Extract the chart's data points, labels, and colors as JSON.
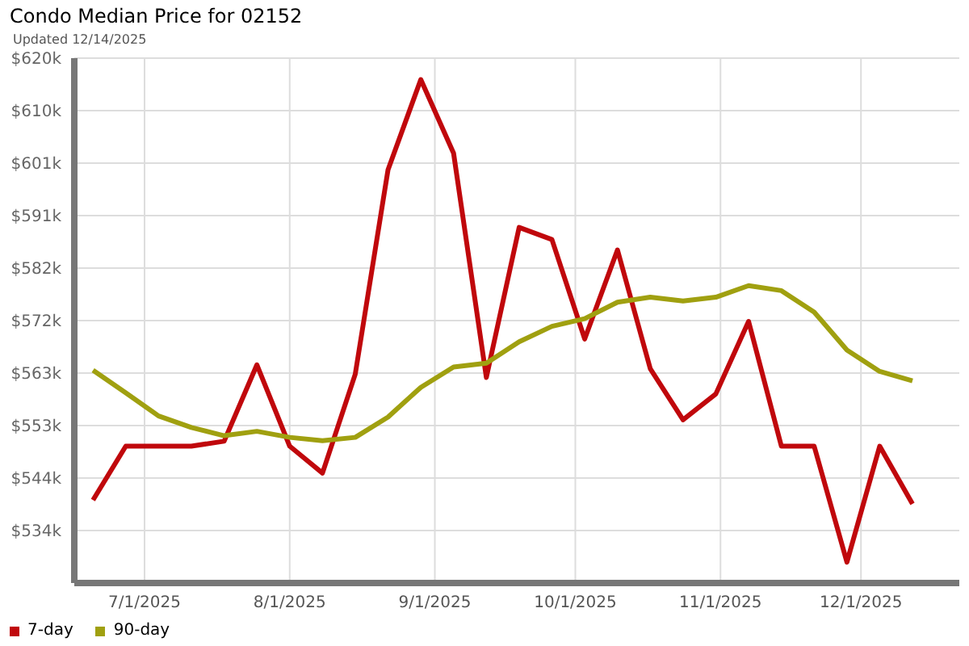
{
  "chart_data": {
    "type": "line",
    "title": "Condo Median Price for 02152",
    "subtitle": "Updated 12/14/2025",
    "x": [
      "2025-06-20",
      "2025-06-27",
      "2025-07-04",
      "2025-07-11",
      "2025-07-18",
      "2025-07-25",
      "2025-08-01",
      "2025-08-08",
      "2025-08-15",
      "2025-08-22",
      "2025-08-29",
      "2025-09-05",
      "2025-09-12",
      "2025-09-19",
      "2025-09-26",
      "2025-10-03",
      "2025-10-10",
      "2025-10-17",
      "2025-10-24",
      "2025-10-31",
      "2025-11-07",
      "2025-11-14",
      "2025-11-21",
      "2025-11-28",
      "2025-12-05",
      "2025-12-12"
    ],
    "series": [
      {
        "name": "7-day",
        "color": "#c0080c",
        "values": [
          539600,
          549400,
          549400,
          549400,
          550300,
          564200,
          549400,
          544500,
          562500,
          599700,
          616100,
          602700,
          561900,
          589200,
          587000,
          568900,
          585100,
          563500,
          554200,
          558900,
          572100,
          549400,
          549400,
          528300,
          549400,
          538900
        ]
      },
      {
        "name": "90-day",
        "color": "#a0a010",
        "values": [
          563200,
          559100,
          554900,
          552800,
          551300,
          552100,
          551000,
          550400,
          551000,
          554700,
          560100,
          563800,
          564500,
          568400,
          571200,
          572600,
          575600,
          576500,
          575800,
          576500,
          578600,
          577700,
          573800,
          566900,
          563000,
          561300
        ]
      }
    ],
    "xlim": [
      "2025-06-16",
      "2025-12-22"
    ],
    "xticks": [
      {
        "value": "2025-07-01",
        "label": "7/1/2025"
      },
      {
        "value": "2025-08-01",
        "label": "8/1/2025"
      },
      {
        "value": "2025-09-01",
        "label": "9/1/2025"
      },
      {
        "value": "2025-10-01",
        "label": "10/1/2025"
      },
      {
        "value": "2025-11-01",
        "label": "11/1/2025"
      },
      {
        "value": "2025-12-01",
        "label": "12/1/2025"
      }
    ],
    "ylim": [
      524500,
      620000
    ],
    "yticks": [
      {
        "value": 534050,
        "label": "$534k"
      },
      {
        "value": 543600,
        "label": "$544k"
      },
      {
        "value": 553150,
        "label": "$553k"
      },
      {
        "value": 562700,
        "label": "$563k"
      },
      {
        "value": 572250,
        "label": "$572k"
      },
      {
        "value": 581800,
        "label": "$582k"
      },
      {
        "value": 591350,
        "label": "$591k"
      },
      {
        "value": 600900,
        "label": "$601k"
      },
      {
        "value": 610450,
        "label": "$610k"
      },
      {
        "value": 620000,
        "label": "$620k"
      }
    ],
    "grid": true,
    "legend": "bottom left",
    "marker": "none",
    "line_style": "solid"
  }
}
